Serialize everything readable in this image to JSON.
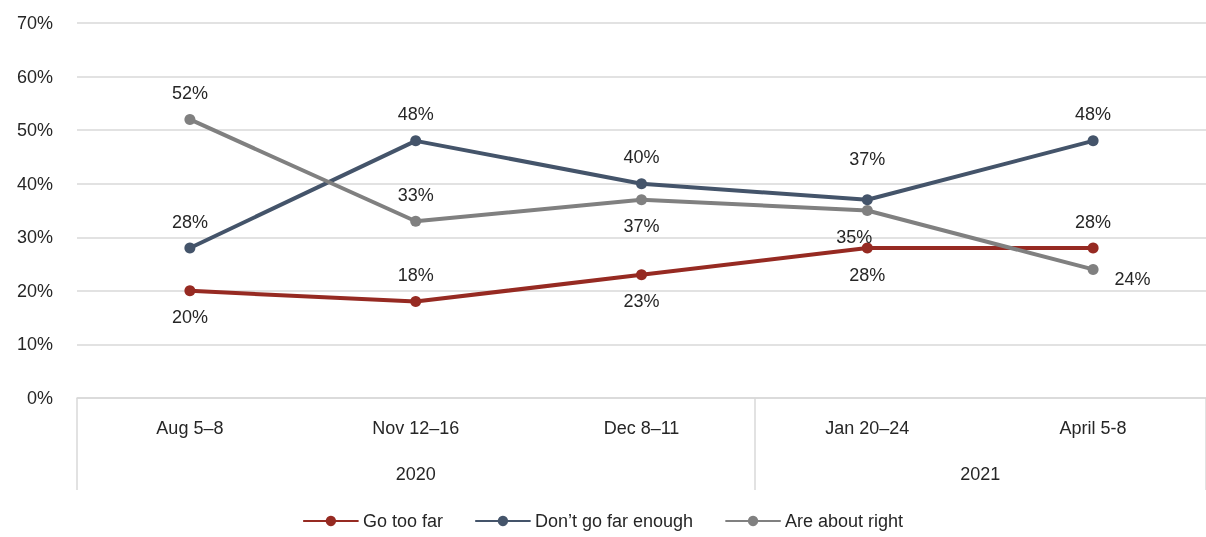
{
  "chart_data": {
    "type": "line",
    "categories": [
      "Aug 5–8",
      "Nov 12–16",
      "Dec 8–11",
      "Jan 20–24",
      "April 5-8"
    ],
    "series": [
      {
        "name": "Go too far",
        "color": "#962a22",
        "values": [
          20,
          18,
          23,
          28,
          28
        ],
        "value_labels": [
          "20%",
          "18%",
          "23%",
          "28%",
          "28%"
        ]
      },
      {
        "name": "Don’t go far enough",
        "color": "#44546a",
        "values": [
          28,
          48,
          40,
          37,
          48
        ],
        "value_labels": [
          "28%",
          "48%",
          "40%",
          "37%",
          "48%"
        ]
      },
      {
        "name": "Are about right",
        "color": "#808080",
        "values": [
          52,
          33,
          37,
          35,
          24
        ],
        "value_labels": [
          "52%",
          "33%",
          "37%",
          "35%",
          "24%"
        ]
      }
    ],
    "ylim": [
      0,
      70
    ],
    "yticks": [
      {
        "value": 0,
        "label": "0%"
      },
      {
        "value": 10,
        "label": "10%"
      },
      {
        "value": 20,
        "label": "20%"
      },
      {
        "value": 30,
        "label": "30%"
      },
      {
        "value": 40,
        "label": "40%"
      },
      {
        "value": 50,
        "label": "50%"
      },
      {
        "value": 60,
        "label": "60%"
      },
      {
        "value": 70,
        "label": "70%"
      }
    ],
    "annotations": [
      "2020",
      "2021"
    ],
    "grid": "y",
    "legend": "bottom",
    "marker": "circle",
    "line_style": "solid"
  }
}
